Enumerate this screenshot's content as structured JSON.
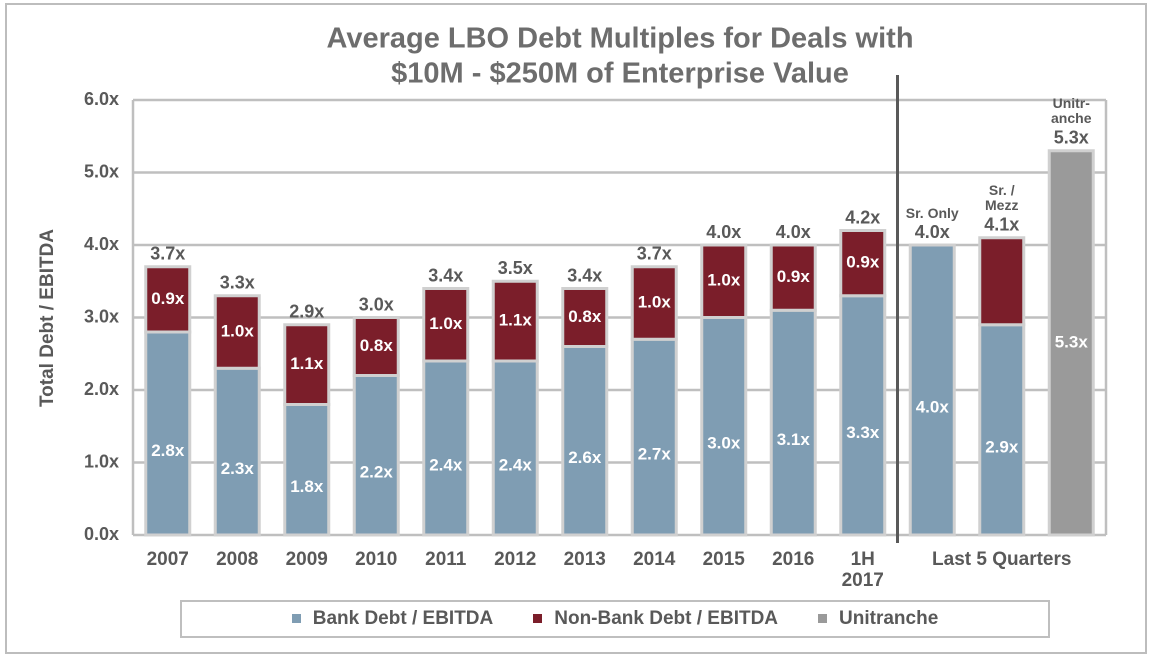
{
  "chart_data": {
    "type": "stacked_bar",
    "title": "Average LBO Debt Multiples for Deals with",
    "subtitle": "$10M - $250M of Enterprise Value",
    "ylabel": "Total Debt / EBITDA",
    "categories": [
      "2007",
      "2008",
      "2009",
      "2010",
      "2011",
      "2012",
      "2013",
      "2014",
      "2015",
      "2016",
      "1H 2017",
      null,
      null,
      null
    ],
    "group_label": "Last 5 Quarters",
    "bar_headers": [
      null,
      null,
      null,
      null,
      null,
      null,
      null,
      null,
      null,
      null,
      null,
      "Sr. Only",
      "Sr. / Mezz",
      "Unitr- anche"
    ],
    "series": [
      {
        "name": "Bank Debt / EBITDA",
        "color": "#7f9db3",
        "values": [
          2.8,
          2.3,
          1.8,
          2.2,
          2.4,
          2.4,
          2.6,
          2.7,
          3.0,
          3.1,
          3.3,
          4.0,
          2.9,
          null
        ],
        "value_labels": [
          "2.8x",
          "2.3x",
          "1.8x",
          "2.2x",
          "2.4x",
          "2.4x",
          "2.6x",
          "2.7x",
          "3.0x",
          "3.1x",
          "3.3x",
          "4.0x",
          "2.9x",
          null
        ]
      },
      {
        "name": "Non-Bank Debt / EBITDA",
        "color": "#7b1e2a",
        "values": [
          0.9,
          1.0,
          1.1,
          0.8,
          1.0,
          1.1,
          0.8,
          1.0,
          1.0,
          0.9,
          0.9,
          null,
          1.2,
          null
        ],
        "value_labels": [
          "0.9x",
          "1.0x",
          "1.1x",
          "0.8x",
          "1.0x",
          "1.1x",
          "0.8x",
          "1.0x",
          "1.0x",
          "0.9x",
          "0.9x",
          null,
          null,
          null
        ]
      },
      {
        "name": "Unitranche",
        "color": "#9a9a9a",
        "values": [
          null,
          null,
          null,
          null,
          null,
          null,
          null,
          null,
          null,
          null,
          null,
          null,
          null,
          5.3
        ],
        "value_labels": [
          null,
          null,
          null,
          null,
          null,
          null,
          null,
          null,
          null,
          null,
          null,
          null,
          null,
          "5.3x"
        ]
      }
    ],
    "totals": [
      3.7,
      3.3,
      2.9,
      3.0,
      3.4,
      3.5,
      3.4,
      3.7,
      4.0,
      4.0,
      4.2,
      4.0,
      4.1,
      5.3
    ],
    "total_labels": [
      "3.7x",
      "3.3x",
      "2.9x",
      "3.0x",
      "3.4x",
      "3.5x",
      "3.4x",
      "3.7x",
      "4.0x",
      "4.0x",
      "4.2x",
      "4.0x",
      "4.1x",
      "5.3x"
    ],
    "ylim": [
      0,
      6
    ],
    "yticks": [
      {
        "value": 0,
        "label": "0.0x"
      },
      {
        "value": 1,
        "label": "1.0x"
      },
      {
        "value": 2,
        "label": "2.0x"
      },
      {
        "value": 3,
        "label": "3.0x"
      },
      {
        "value": 4,
        "label": "4.0x"
      },
      {
        "value": 5,
        "label": "5.0x"
      },
      {
        "value": 6,
        "label": "6.0x"
      }
    ],
    "grid": true,
    "legend": "bottom"
  }
}
